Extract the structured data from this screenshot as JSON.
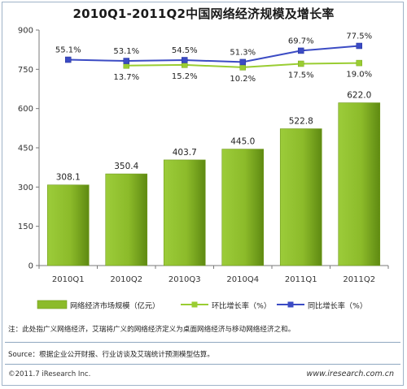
{
  "header": {
    "title": "2010Q1-2011Q2中国网络经济规模及增长率"
  },
  "legend": {
    "bar_label": "网络经济市场规模（亿元）",
    "qoq_label": "环比增长率（%）",
    "yoy_label": "同比增长率（%）"
  },
  "footer": {
    "note": "注：此处指广义网络经济，艾瑞将广义的网络经济定义为桌面网络经济与移动网络经济之和。",
    "source": "Source：根据企业公开财报、行业访谈及艾瑞统计预测模型估算。",
    "copyright": "©2011.7 iResearch Inc.",
    "website": "www.iresearch.com.cn"
  },
  "colors": {
    "bar": "#8cbb2a",
    "bar_dark": "#5f8a12",
    "qoq_line": "#9acd32",
    "yoy_line": "#3b4bc4"
  },
  "chart_data": {
    "type": "bar",
    "title": "2010Q1-2011Q2中国网络经济规模及增长率",
    "categories": [
      "2010Q1",
      "2010Q2",
      "2010Q3",
      "2010Q4",
      "2011Q1",
      "2011Q2"
    ],
    "ylim": [
      0,
      900
    ],
    "yticks": [
      0,
      150,
      300,
      450,
      600,
      750,
      900
    ],
    "grid": false,
    "legend_position": "bottom",
    "series": [
      {
        "name": "网络经济市场规模（亿元）",
        "kind": "bar",
        "values": [
          308.1,
          350.4,
          403.7,
          445.0,
          522.8,
          622.0
        ],
        "labels": [
          "308.1",
          "350.4",
          "403.7",
          "445.0",
          "522.8",
          "622.0"
        ]
      },
      {
        "name": "环比增长率（%）",
        "kind": "line",
        "values": [
          null,
          13.7,
          15.2,
          10.2,
          17.5,
          19.0
        ],
        "labels": [
          "",
          "13.7%",
          "15.2%",
          "10.2%",
          "17.5%",
          "19.0%"
        ]
      },
      {
        "name": "同比增长率（%）",
        "kind": "line",
        "values": [
          55.1,
          53.1,
          54.5,
          51.3,
          69.7,
          77.5
        ],
        "labels": [
          "55.1%",
          "53.1%",
          "54.5%",
          "51.3%",
          "69.7%",
          "77.5%"
        ]
      }
    ]
  }
}
